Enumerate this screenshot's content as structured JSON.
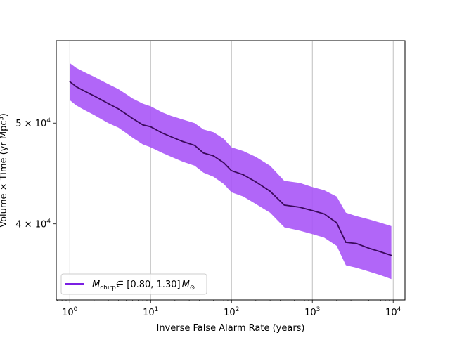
{
  "chart_data": {
    "type": "line",
    "xscale": "log",
    "yscale": "log",
    "xlim": [
      0.68,
      14000
    ],
    "ylim": [
      33800,
      60000
    ],
    "xlabel": "Inverse False Alarm Rate (years)",
    "ylabel": "Volume × Time (yr Mpc³)",
    "grid": "vertical",
    "legend_position": "lower-left",
    "x_ticks": [
      {
        "value": 1,
        "base": "10",
        "exp": "0"
      },
      {
        "value": 10,
        "base": "10",
        "exp": "1"
      },
      {
        "value": 100,
        "base": "10",
        "exp": "2"
      },
      {
        "value": 1000,
        "base": "10",
        "exp": "3"
      },
      {
        "value": 10000,
        "base": "10",
        "exp": "4"
      }
    ],
    "y_ticks": [
      {
        "value": 40000,
        "mant": "4 × 10",
        "exp": "4"
      },
      {
        "value": 50000,
        "mant": "5 × 10",
        "exp": "4"
      }
    ],
    "series": [
      {
        "name": "M_chirp ∈ [0.80, 1.30] M_⊙",
        "legend_label": {
          "m": "M",
          "sub": "chirp",
          "mid": "∈ [0.80, 1.30]",
          "m2": "M",
          "sub2": "⊙"
        },
        "line_color": "#3b0a5c",
        "band_color": "#a855f7",
        "legend_color": "#7b1fe3",
        "x": [
          1,
          1.2,
          1.5,
          2,
          2.5,
          3,
          4,
          5,
          6,
          8,
          10,
          14,
          18,
          25,
          35,
          45,
          60,
          80,
          100,
          140,
          200,
          300,
          450,
          700,
          1000,
          1400,
          2000,
          2600,
          3500,
          5000,
          7000,
          9500
        ],
        "y": [
          54800,
          54200,
          53700,
          53100,
          52600,
          52200,
          51600,
          51000,
          50500,
          49800,
          49600,
          48900,
          48500,
          48000,
          47600,
          46800,
          46500,
          45800,
          45000,
          44600,
          43900,
          43000,
          41700,
          41500,
          41200,
          40900,
          40100,
          38400,
          38300,
          37900,
          37600,
          37300
        ],
        "y_upper": [
          57100,
          56500,
          56000,
          55400,
          54900,
          54500,
          53900,
          53300,
          52800,
          52200,
          51900,
          51200,
          50800,
          50400,
          50000,
          49300,
          49000,
          48300,
          47400,
          47000,
          46400,
          45500,
          44000,
          43800,
          43400,
          43100,
          42500,
          41000,
          40700,
          40400,
          40100,
          39800
        ],
        "y_lower": [
          52600,
          52000,
          51500,
          50900,
          50400,
          50000,
          49500,
          48900,
          48400,
          47700,
          47400,
          46800,
          46400,
          45900,
          45500,
          44800,
          44400,
          43700,
          42900,
          42500,
          41800,
          41000,
          39700,
          39400,
          39100,
          38800,
          38100,
          36500,
          36300,
          36000,
          35700,
          35400
        ]
      }
    ]
  }
}
